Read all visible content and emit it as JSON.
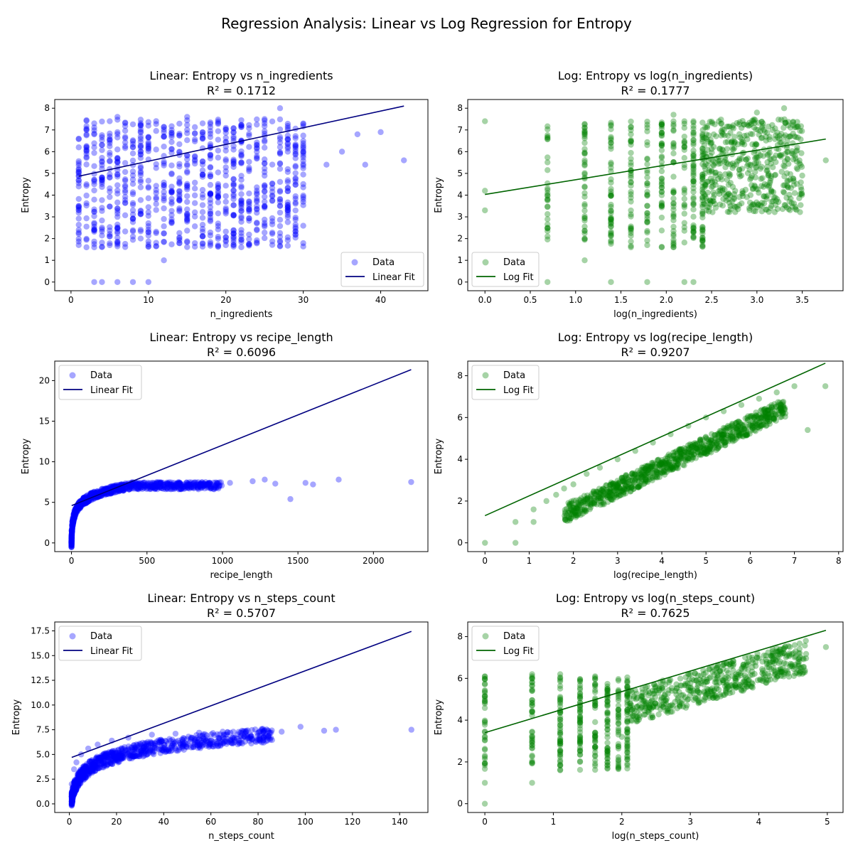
{
  "figure": {
    "suptitle": "Regression Analysis: Linear vs Log Regression for Entropy"
  },
  "colors": {
    "linear_points": "#0000ff",
    "linear_fit": "#000080",
    "log_points": "#008000",
    "log_fit": "#006400"
  },
  "chart_data": [
    {
      "type": "scatter",
      "title": "Linear: Entropy vs n_ingredients",
      "subtitle": "R² = 0.1712",
      "xlabel": "n_ingredients",
      "ylabel": "Entropy",
      "xlim": [
        -2.1,
        46.1
      ],
      "ylim": [
        -0.4,
        8.4
      ],
      "xticks": [
        0,
        10,
        20,
        30,
        40
      ],
      "yticks": [
        0,
        1,
        2,
        3,
        4,
        5,
        6,
        7,
        8
      ],
      "legend": {
        "position": "bottom-right",
        "data_label": "Data",
        "fit_label": "Linear Fit"
      },
      "scatter_style": "linear",
      "fit": {
        "x": [
          1,
          43
        ],
        "y": [
          4.87,
          8.1
        ]
      },
      "points_summary": "dense vertical columns at integer x from 1 to ~30 spanning entropy ~1.6 to ~7.5, sparse points up to x=43",
      "x": [
        1,
        1,
        1,
        2,
        2,
        2,
        3,
        3,
        3,
        4,
        5,
        6,
        6,
        8,
        10,
        12,
        15,
        20,
        22,
        25,
        27,
        30,
        33,
        35,
        37,
        38,
        40,
        43
      ],
      "y": [
        3.3,
        5.0,
        6.2,
        1.6,
        4.5,
        7.0,
        0.0,
        1.6,
        7.3,
        0.0,
        7.4,
        0.0,
        7.6,
        0.0,
        0.0,
        1.0,
        7.6,
        4.9,
        3.4,
        7.5,
        8.0,
        6.0,
        5.4,
        6.0,
        6.8,
        5.4,
        6.9,
        5.6
      ]
    },
    {
      "type": "scatter",
      "title": "Log: Entropy vs log(n_ingredients)",
      "subtitle": "R² = 0.1777",
      "xlabel": "log(n_ingredients)",
      "ylabel": "Entropy",
      "xlim": [
        -0.19,
        3.95
      ],
      "ylim": [
        -0.4,
        8.4
      ],
      "xticks": [
        0.0,
        0.5,
        1.0,
        1.5,
        2.0,
        2.5,
        3.0,
        3.5
      ],
      "xtick_labels": [
        "0.0",
        "0.5",
        "1.0",
        "1.5",
        "2.0",
        "2.5",
        "3.0",
        "3.5"
      ],
      "yticks": [
        0,
        1,
        2,
        3,
        4,
        5,
        6,
        7,
        8
      ],
      "legend": {
        "position": "bottom-left",
        "data_label": "Data",
        "fit_label": "Log Fit"
      },
      "scatter_style": "log",
      "fit": {
        "x": [
          0,
          3.76
        ],
        "y": [
          4.03,
          6.58
        ]
      },
      "x": [
        0,
        0,
        0,
        0.69,
        1.1,
        1.39,
        1.61,
        1.79,
        1.95,
        2.08,
        2.2,
        2.3,
        3.0,
        3.3,
        3.5,
        3.76
      ],
      "y": [
        3.3,
        4.2,
        7.4,
        0.0,
        1.0,
        0.0,
        1.6,
        0.0,
        1.6,
        7.7,
        0.0,
        0.0,
        7.8,
        8.0,
        4.9,
        5.6
      ]
    },
    {
      "type": "scatter",
      "title": "Linear: Entropy vs recipe_length",
      "subtitle": "R² = 0.6096",
      "xlabel": "recipe_length",
      "ylabel": "Entropy",
      "xlim": [
        -111,
        2361
      ],
      "ylim": [
        -1.07,
        22.4
      ],
      "xticks": [
        0,
        500,
        1000,
        1500,
        2000
      ],
      "yticks": [
        0,
        5,
        10,
        15,
        20
      ],
      "legend": {
        "position": "top-left",
        "data_label": "Data",
        "fit_label": "Linear Fit"
      },
      "scatter_style": "linear",
      "fit": {
        "x": [
          1,
          2250
        ],
        "y": [
          4.6,
          21.35
        ]
      },
      "x": [
        0,
        0,
        5,
        10,
        20,
        50,
        100,
        200,
        300,
        400,
        500,
        700,
        900,
        1050,
        1200,
        1280,
        1350,
        1450,
        1550,
        1600,
        1770,
        2250
      ],
      "y": [
        0.0,
        1.5,
        2.6,
        3.2,
        4.0,
        5.0,
        5.8,
        6.4,
        6.8,
        7.0,
        7.1,
        7.2,
        7.3,
        7.4,
        7.6,
        7.8,
        7.3,
        5.4,
        7.4,
        7.2,
        7.8,
        7.5
      ]
    },
    {
      "type": "scatter",
      "title": "Log: Entropy vs log(recipe_length)",
      "subtitle": "R² = 0.9207",
      "xlabel": "log(recipe_length)",
      "ylabel": "Entropy",
      "xlim": [
        -0.39,
        8.1
      ],
      "ylim": [
        -0.42,
        8.7
      ],
      "xticks": [
        0,
        1,
        2,
        3,
        4,
        5,
        6,
        7,
        8
      ],
      "yticks": [
        0,
        2,
        4,
        6,
        8
      ],
      "legend": {
        "position": "top-left",
        "data_label": "Data",
        "fit_label": "Log Fit"
      },
      "scatter_style": "log",
      "fit": {
        "x": [
          0,
          7.7
        ],
        "y": [
          1.3,
          8.6
        ]
      },
      "x": [
        0,
        0.69,
        0.69,
        1.1,
        1.1,
        1.39,
        1.61,
        1.79,
        2.0,
        2.3,
        2.6,
        3.0,
        3.4,
        3.8,
        4.2,
        4.6,
        5.0,
        5.4,
        5.8,
        6.2,
        6.6,
        7.0,
        7.3,
        7.7
      ],
      "y": [
        0.0,
        0.0,
        1.0,
        1.0,
        1.6,
        2.0,
        2.3,
        2.6,
        2.8,
        3.3,
        3.6,
        4.0,
        4.4,
        4.8,
        5.2,
        5.6,
        6.0,
        6.3,
        6.6,
        6.9,
        7.2,
        7.5,
        5.4,
        7.5
      ]
    },
    {
      "type": "scatter",
      "title": "Linear: Entropy vs n_steps_count",
      "subtitle": "R² = 0.5707",
      "xlabel": "n_steps_count",
      "ylabel": "Entropy",
      "xlim": [
        -6.2,
        152
      ],
      "ylim": [
        -0.87,
        18.4
      ],
      "xticks": [
        0,
        20,
        40,
        60,
        80,
        100,
        120,
        140
      ],
      "yticks": [
        0.0,
        2.5,
        5.0,
        7.5,
        10.0,
        12.5,
        15.0,
        17.5
      ],
      "ytick_labels": [
        "0.0",
        "2.5",
        "5.0",
        "7.5",
        "10.0",
        "12.5",
        "15.0",
        "17.5"
      ],
      "legend": {
        "position": "top-left",
        "data_label": "Data",
        "fit_label": "Linear Fit"
      },
      "scatter_style": "linear",
      "fit": {
        "x": [
          1,
          145
        ],
        "y": [
          4.7,
          17.45
        ]
      },
      "x": [
        1,
        1,
        2,
        3,
        5,
        8,
        12,
        18,
        25,
        35,
        45,
        55,
        65,
        75,
        82,
        90,
        98,
        108,
        113,
        145
      ],
      "y": [
        0.0,
        2.0,
        3.5,
        4.2,
        5.0,
        5.6,
        6.0,
        6.4,
        6.7,
        7.0,
        7.1,
        7.2,
        7.3,
        7.4,
        7.6,
        7.3,
        7.8,
        7.4,
        7.5,
        7.5
      ]
    },
    {
      "type": "scatter",
      "title": "Log: Entropy vs log(n_steps_count)",
      "subtitle": "R² = 0.7625",
      "xlabel": "log(n_steps_count)",
      "ylabel": "Entropy",
      "xlim": [
        -0.25,
        5.23
      ],
      "ylim": [
        -0.42,
        8.7
      ],
      "xticks": [
        0,
        1,
        2,
        3,
        4,
        5
      ],
      "yticks": [
        0,
        2,
        4,
        6,
        8
      ],
      "legend": {
        "position": "top-left",
        "data_label": "Data",
        "fit_label": "Log Fit"
      },
      "scatter_style": "log",
      "fit": {
        "x": [
          0,
          4.98
        ],
        "y": [
          3.4,
          8.3
        ]
      },
      "x": [
        0,
        0,
        0,
        0.69,
        0.69,
        1.1,
        1.1,
        1.39,
        1.61,
        1.79,
        2.0,
        2.3,
        2.6,
        3.0,
        3.4,
        3.8,
        4.2,
        4.6,
        4.98
      ],
      "y": [
        0.0,
        1.0,
        6.1,
        1.0,
        6.2,
        1.6,
        6.2,
        2.0,
        6.1,
        2.3,
        3.2,
        5.5,
        5.9,
        6.2,
        6.6,
        7.0,
        7.4,
        7.2,
        7.5
      ]
    }
  ]
}
